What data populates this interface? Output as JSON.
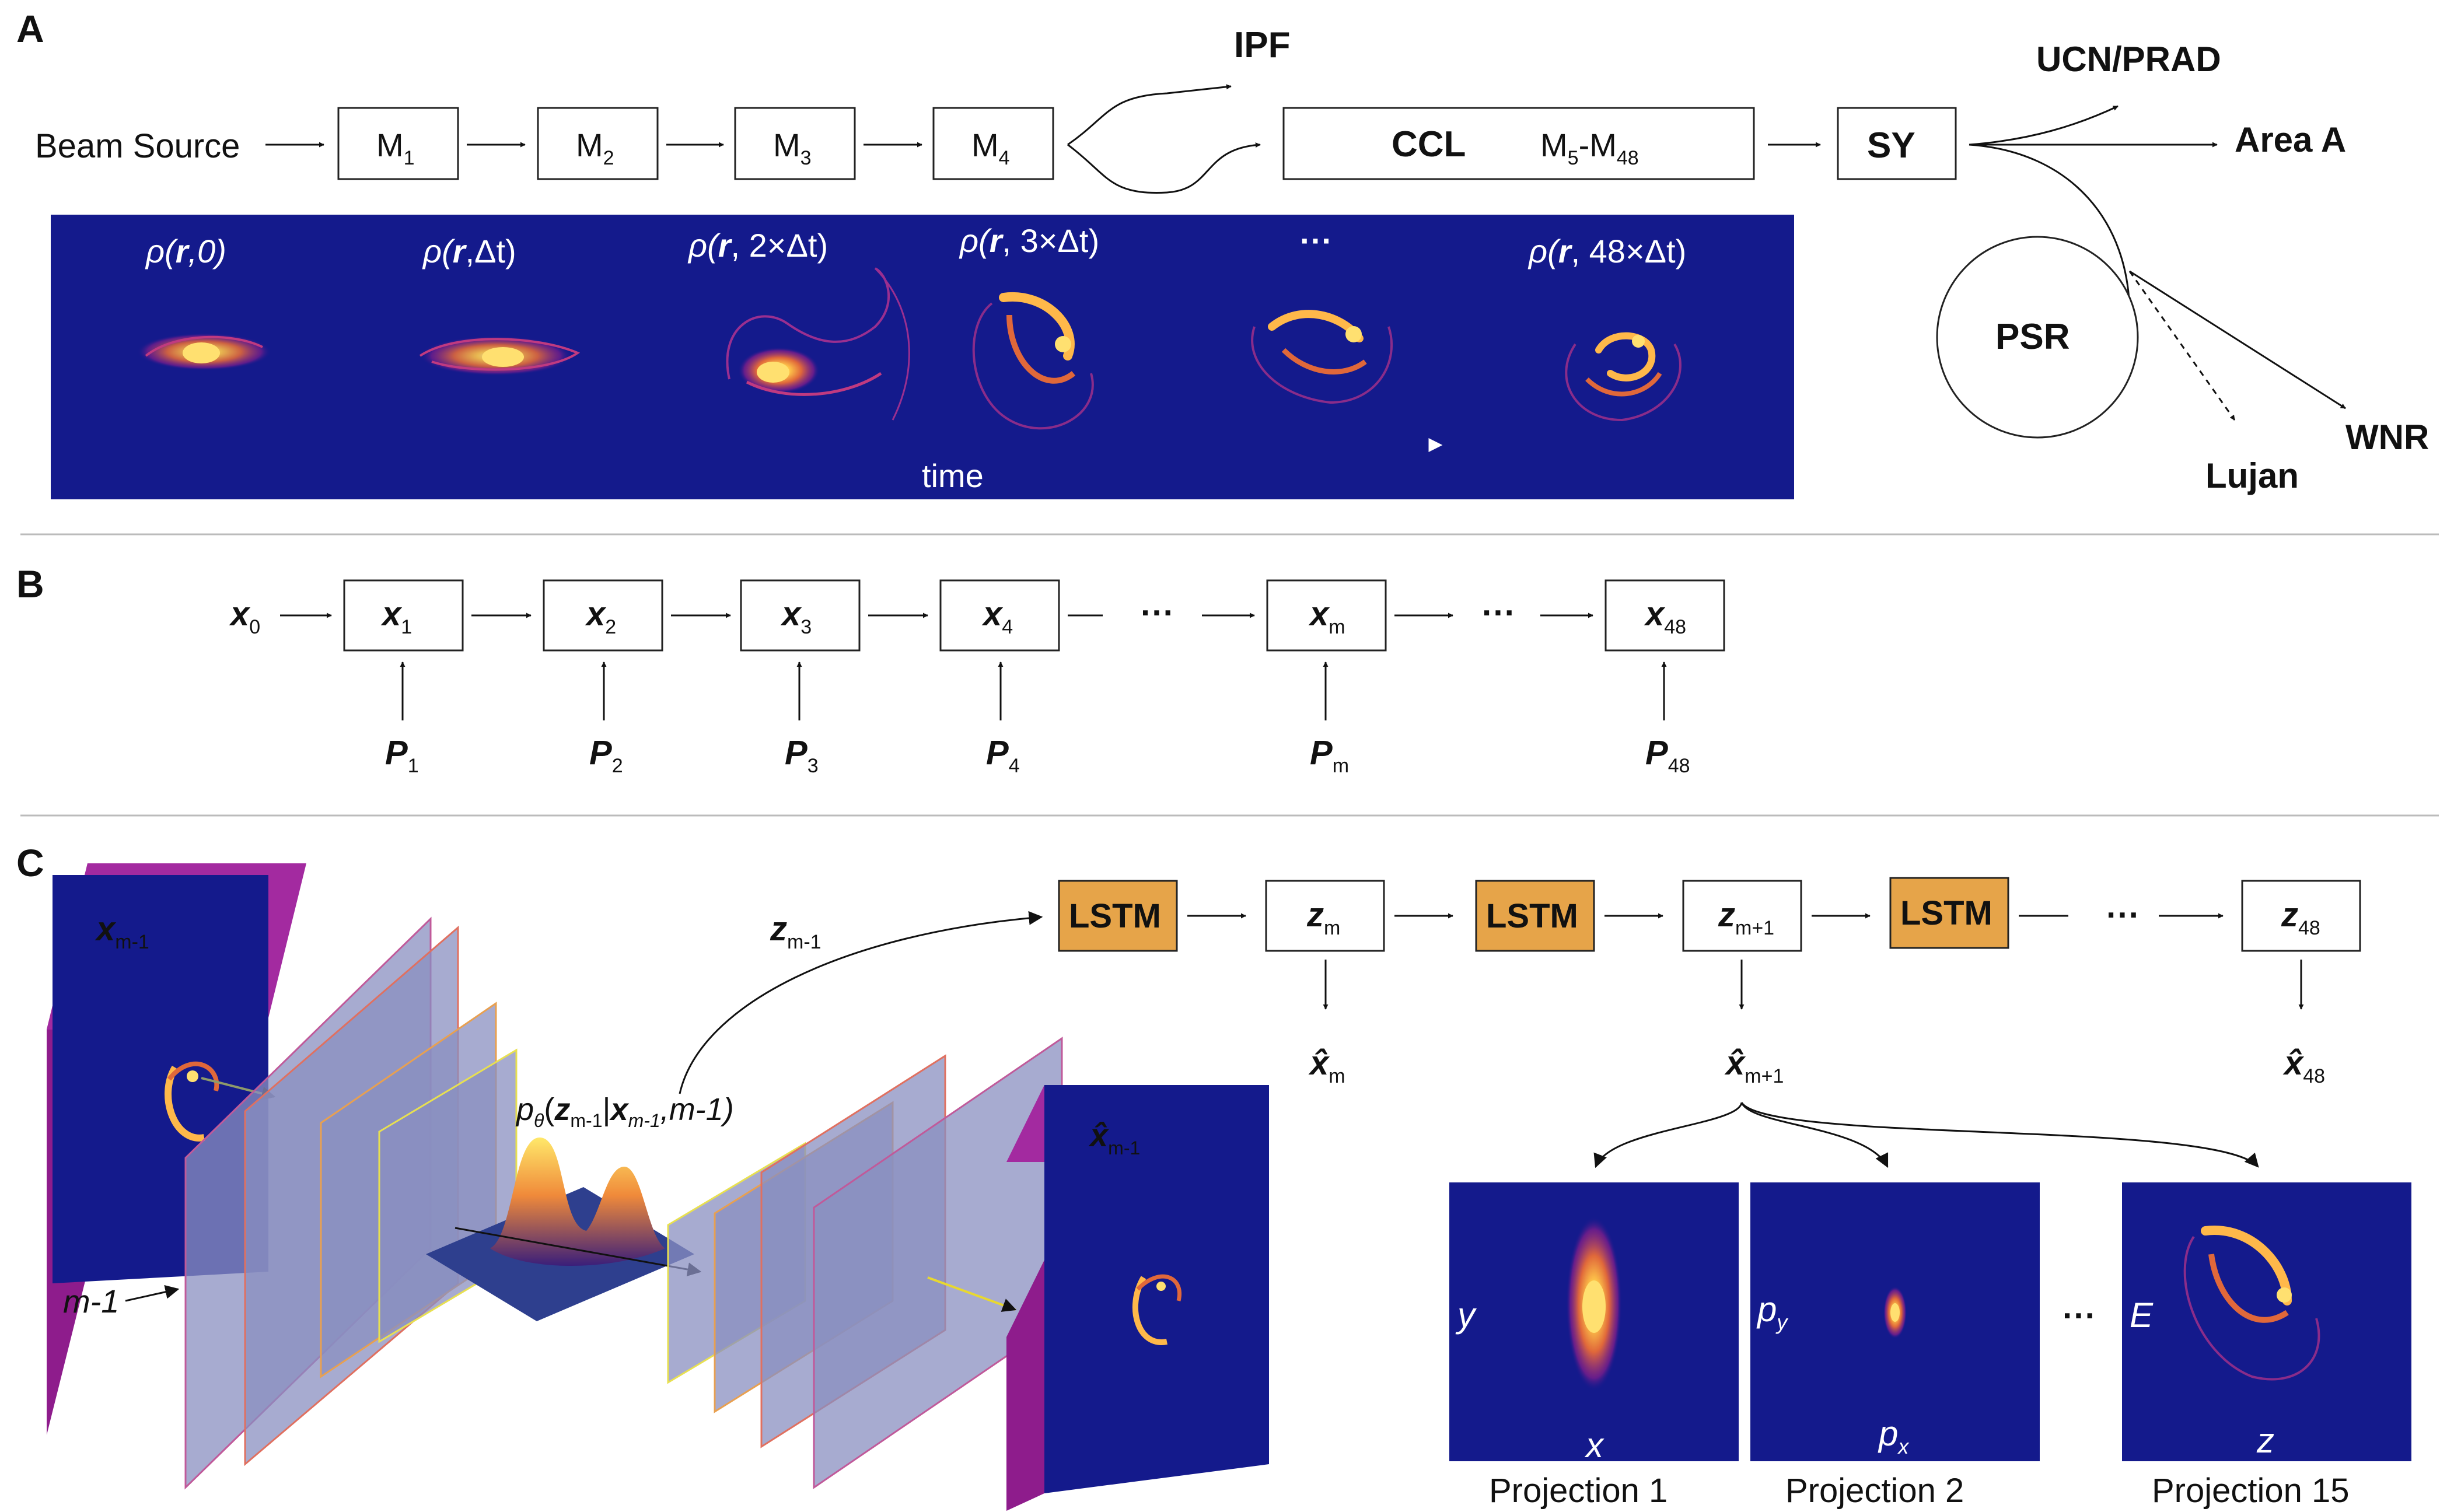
{
  "panels": {
    "a": "A",
    "b": "B",
    "c": "C"
  },
  "panel_a": {
    "source": "Beam Source",
    "modules": [
      {
        "base": "M",
        "sub": "1"
      },
      {
        "base": "M",
        "sub": "2"
      },
      {
        "base": "M",
        "sub": "3"
      },
      {
        "base": "M",
        "sub": "4"
      }
    ],
    "ipf": "IPF",
    "ccl": "CCL",
    "ccl_range": {
      "a": "M",
      "a_sub": "5",
      "dash": "-M",
      "b_sub": "48"
    },
    "sy": "SY",
    "psr": "PSR",
    "targets": {
      "ucn": "UCN/PRAD",
      "area_a": "Area A",
      "wnr": "WNR",
      "lujan": "Lujan"
    },
    "time_label": "time",
    "density_labels": [
      {
        "pre": "ρ(",
        "r": "r",
        "post": ",0)"
      },
      {
        "pre": "ρ(",
        "r": "r",
        "post": ",Δt)"
      },
      {
        "pre": "ρ(",
        "r": "r",
        "post": ", 2×Δt)"
      },
      {
        "pre": "ρ(",
        "r": "r",
        "post": ", 3×Δt)"
      },
      {
        "pre": "",
        "r": "",
        "post": "···"
      },
      {
        "pre": "ρ(",
        "r": "r",
        "post": ", 48×Δt)"
      }
    ]
  },
  "panel_b": {
    "x0": {
      "base": "x",
      "sub": "0"
    },
    "states": [
      {
        "base": "x",
        "sub": "1"
      },
      {
        "base": "x",
        "sub": "2"
      },
      {
        "base": "x",
        "sub": "3"
      },
      {
        "base": "x",
        "sub": "4"
      },
      {
        "base": "x",
        "sub": "m"
      },
      {
        "base": "x",
        "sub": "48"
      }
    ],
    "params": [
      {
        "base": "P",
        "sub": "1"
      },
      {
        "base": "P",
        "sub": "2"
      },
      {
        "base": "P",
        "sub": "3"
      },
      {
        "base": "P",
        "sub": "4"
      },
      {
        "base": "P",
        "sub": "m"
      },
      {
        "base": "P",
        "sub": "48"
      }
    ],
    "ellipsis": "···"
  },
  "panel_c": {
    "input": {
      "base": "x",
      "sub": "m-1"
    },
    "index_label": "m-1",
    "latent_in": {
      "base": "z",
      "sub": "m-1"
    },
    "posterior": {
      "p": "p",
      "theta": "θ",
      "open": "(",
      "z": "z",
      "z_sub": "m-1",
      "bar": "|",
      "x": "x",
      "x_sub": "m-1",
      "tail": ",m-1)"
    },
    "output": {
      "base": "x̂",
      "sub": "m-1"
    },
    "lstm_label": "LSTM",
    "latents": [
      {
        "base": "z",
        "sub": "m"
      },
      {
        "base": "z",
        "sub": "m+1"
      },
      {
        "base": "z",
        "sub": "48"
      }
    ],
    "recons": [
      {
        "base": "x̂",
        "sub": "m"
      },
      {
        "base": "x̂",
        "sub": "m+1"
      },
      {
        "base": "x̂",
        "sub": "48"
      }
    ],
    "ellipsis": "···",
    "projections": [
      {
        "name": "Projection 1",
        "xlabel": "x",
        "ylabel": "y",
        "ysub": ""
      },
      {
        "name": "Projection 2",
        "xlabel": "p",
        "xsub": "x",
        "ylabel": "p",
        "ysub": "y"
      },
      {
        "name": "Projection 15",
        "xlabel": "z",
        "ylabel": "E",
        "ysub": ""
      }
    ]
  },
  "colors": {
    "beam_bg": "#141A8C",
    "lstm": "#E6A449",
    "beam_core": "#FFD25A",
    "beam_mid": "#E0683A",
    "beam_edge": "#8A1E8A",
    "layer_fill": "#8A8FC0"
  }
}
